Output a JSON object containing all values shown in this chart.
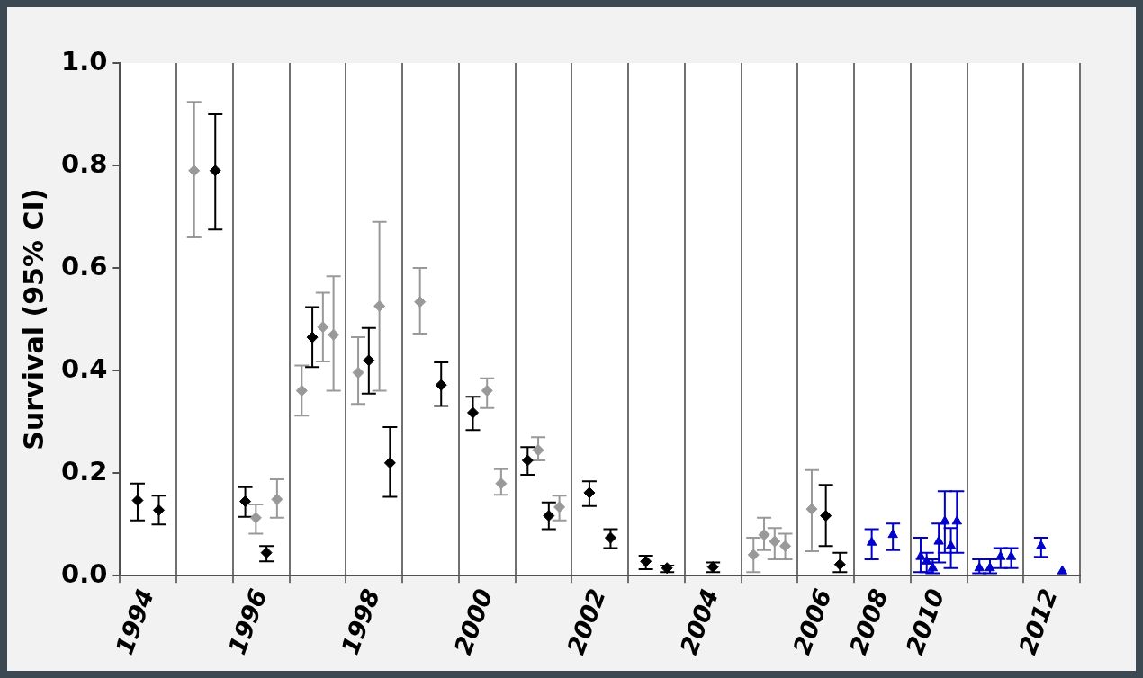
{
  "chart_data": {
    "type": "scatter",
    "ylabel": "Survival (95% CI)",
    "categories": [
      "1994",
      null,
      "1996",
      null,
      "1998",
      null,
      "2000",
      null,
      "2002",
      null,
      "2004",
      null,
      "2006",
      "2008",
      "2010",
      null,
      "2012"
    ],
    "ylim": [
      0,
      1
    ],
    "yticks": [
      {
        "value": 0,
        "label": "0.0"
      },
      {
        "value": 0.2,
        "label": "0.2"
      },
      {
        "value": 0.4,
        "label": "0.4"
      },
      {
        "value": 0.6,
        "label": "0.6"
      },
      {
        "value": 0.8,
        "label": "0.8"
      },
      {
        "value": 1,
        "label": "1.0"
      }
    ],
    "grid": "x",
    "legend": false,
    "series": [
      {
        "marker": "diamond",
        "values": [
          0.147,
          0.79,
          0.145,
          0.361,
          0.396,
          0.534,
          0.318,
          0.225,
          0.162,
          0.028,
          0.017,
          0.041,
          0.13,
          null,
          null,
          null,
          null
        ],
        "colors": [
          "#000000",
          "#999999",
          "#000000",
          "#999999",
          "#999999",
          "#999999",
          "#000000",
          "#000000",
          "#000000",
          "#000000",
          "#000000",
          "#999999",
          "#999999",
          null,
          null,
          null,
          null
        ],
        "errors": [
          [
            0.108,
            0.18
          ],
          [
            0.66,
            0.924
          ],
          [
            0.115,
            0.173
          ],
          [
            0.312,
            0.41
          ],
          [
            0.335,
            0.465
          ],
          [
            0.472,
            0.6
          ],
          [
            0.284,
            0.349
          ],
          [
            0.197,
            0.251
          ],
          [
            0.136,
            0.184
          ],
          [
            0.013,
            0.039
          ],
          [
            0.007,
            0.026
          ],
          [
            0.007,
            0.074
          ],
          [
            0.048,
            0.206
          ],
          null,
          null,
          null,
          null
        ]
      },
      {
        "marker": "diamond",
        "values": [
          0.128,
          0.79,
          0.113,
          0.465,
          0.42,
          0.372,
          0.361,
          0.245,
          0.074,
          0.015,
          null,
          0.08,
          0.117,
          null,
          null,
          null,
          null
        ],
        "colors": [
          "#000000",
          "#000000",
          "#999999",
          "#000000",
          "#000000",
          "#000000",
          "#999999",
          "#999999",
          "#000000",
          "#000000",
          null,
          "#999999",
          "#000000",
          null,
          null,
          null,
          null
        ],
        "errors": [
          [
            0.1,
            0.156
          ],
          [
            0.675,
            0.9
          ],
          [
            0.082,
            0.139
          ],
          [
            0.407,
            0.524
          ],
          [
            0.355,
            0.483
          ],
          [
            0.331,
            0.416
          ],
          [
            0.327,
            0.385
          ],
          [
            0.225,
            0.27
          ],
          [
            0.054,
            0.091
          ],
          [
            0.007,
            0.02
          ],
          null,
          [
            0.05,
            0.113
          ],
          [
            0.058,
            0.177
          ],
          null,
          null,
          null,
          null
        ]
      },
      {
        "marker": "diamond",
        "values": [
          null,
          null,
          0.045,
          0.485,
          0.526,
          null,
          0.18,
          0.117,
          null,
          null,
          null,
          0.067,
          0.022,
          null,
          null,
          null,
          null
        ],
        "colors": [
          null,
          null,
          "#000000",
          "#999999",
          "#999999",
          null,
          "#999999",
          "#000000",
          null,
          null,
          null,
          "#999999",
          "#000000",
          null,
          null,
          null,
          null
        ],
        "errors": [
          null,
          null,
          [
            0.028,
            0.058
          ],
          [
            0.418,
            0.552
          ],
          [
            0.361,
            0.69
          ],
          null,
          [
            0.158,
            0.208
          ],
          [
            0.091,
            0.143
          ],
          null,
          null,
          null,
          [
            0.032,
            0.093
          ],
          [
            0.007,
            0.045
          ],
          null,
          null,
          null,
          null
        ]
      },
      {
        "marker": "diamond",
        "values": [
          null,
          null,
          0.149,
          0.47,
          0.22,
          null,
          null,
          0.134,
          null,
          null,
          null,
          0.058,
          null,
          null,
          null,
          null,
          null
        ],
        "colors": [
          null,
          null,
          "#999999",
          "#999999",
          "#000000",
          null,
          null,
          "#999999",
          null,
          null,
          null,
          "#999999",
          null,
          null,
          null,
          null,
          null
        ],
        "errors": [
          null,
          null,
          [
            0.113,
            0.188
          ],
          [
            0.361,
            0.584
          ],
          [
            0.154,
            0.29
          ],
          null,
          null,
          [
            0.108,
            0.156
          ],
          null,
          null,
          null,
          [
            0.032,
            0.082
          ],
          null,
          null,
          null,
          null,
          null
        ]
      },
      {
        "marker": "triangle",
        "color": "#0000cc",
        "values": [
          null,
          null,
          null,
          null,
          null,
          null,
          null,
          null,
          null,
          null,
          null,
          null,
          null,
          0.065,
          0.037,
          0.015,
          0.058
        ],
        "errors": [
          null,
          null,
          null,
          null,
          null,
          null,
          null,
          null,
          null,
          null,
          null,
          null,
          null,
          [
            0.032,
            0.091
          ],
          [
            0.007,
            0.074
          ],
          [
            0.005,
            0.032
          ],
          [
            0.037,
            0.074
          ]
        ]
      },
      {
        "marker": "triangle",
        "color": "#0000cc",
        "values": [
          null,
          null,
          null,
          null,
          null,
          null,
          null,
          null,
          null,
          null,
          null,
          null,
          null,
          0.08,
          0.028,
          0.015,
          0.009
        ],
        "errors": [
          null,
          null,
          null,
          null,
          null,
          null,
          null,
          null,
          null,
          null,
          null,
          null,
          null,
          [
            0.05,
            0.102
          ],
          [
            0.007,
            0.045
          ],
          [
            0.005,
            0.032
          ],
          null
        ]
      },
      {
        "marker": "triangle",
        "color": "#0000cc",
        "values": [
          null,
          null,
          null,
          null,
          null,
          null,
          null,
          null,
          null,
          null,
          null,
          null,
          null,
          null,
          0.015,
          0.037,
          null
        ],
        "errors": [
          null,
          null,
          null,
          null,
          null,
          null,
          null,
          null,
          null,
          null,
          null,
          null,
          null,
          null,
          [
            0.005,
            0.032
          ],
          [
            0.015,
            0.054
          ],
          null
        ]
      },
      {
        "marker": "triangle",
        "color": "#0000cc",
        "values": [
          null,
          null,
          null,
          null,
          null,
          null,
          null,
          null,
          null,
          null,
          null,
          null,
          null,
          null,
          0.067,
          0.037,
          null
        ],
        "errors": [
          null,
          null,
          null,
          null,
          null,
          null,
          null,
          null,
          null,
          null,
          null,
          null,
          null,
          null,
          [
            0.026,
            0.102
          ],
          [
            0.015,
            0.054
          ],
          null
        ]
      },
      {
        "marker": "triangle",
        "color": "#0000cc",
        "values": [
          null,
          null,
          null,
          null,
          null,
          null,
          null,
          null,
          null,
          null,
          null,
          null,
          null,
          null,
          0.106,
          null,
          null
        ],
        "errors": [
          null,
          null,
          null,
          null,
          null,
          null,
          null,
          null,
          null,
          null,
          null,
          null,
          null,
          null,
          [
            0.045,
            0.165
          ],
          null,
          null
        ]
      },
      {
        "marker": "triangle",
        "color": "#0000cc",
        "values": [
          null,
          null,
          null,
          null,
          null,
          null,
          null,
          null,
          null,
          null,
          null,
          null,
          null,
          null,
          0.058,
          null,
          null
        ],
        "errors": [
          null,
          null,
          null,
          null,
          null,
          null,
          null,
          null,
          null,
          null,
          null,
          null,
          null,
          null,
          [
            0.015,
            0.093
          ],
          null,
          null
        ]
      },
      {
        "marker": "triangle",
        "color": "#0000cc",
        "values": [
          null,
          null,
          null,
          null,
          null,
          null,
          null,
          null,
          null,
          null,
          null,
          null,
          null,
          null,
          0.106,
          null,
          null
        ],
        "errors": [
          null,
          null,
          null,
          null,
          null,
          null,
          null,
          null,
          null,
          null,
          null,
          null,
          null,
          null,
          [
            0.045,
            0.165
          ],
          null,
          null
        ]
      }
    ]
  }
}
